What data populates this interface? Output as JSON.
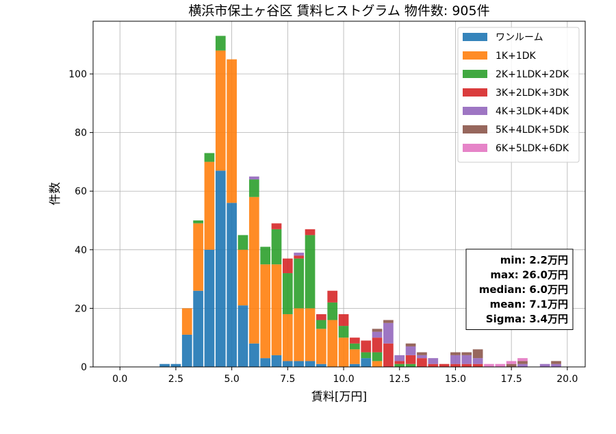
{
  "chart_data": {
    "type": "bar",
    "stacked": true,
    "title": "横浜市保土ヶ谷区 賃料ヒストグラム 物件数: 905件",
    "xlabel": "賃料[万円]",
    "ylabel": "件数",
    "xlim": [
      -1.2,
      20.8
    ],
    "ylim": [
      0,
      118
    ],
    "xticks": [
      0.0,
      2.5,
      5.0,
      7.5,
      10.0,
      12.5,
      15.0,
      17.5,
      20.0
    ],
    "xtick_labels": [
      "0.0",
      "2.5",
      "5.0",
      "7.5",
      "10.0",
      "12.5",
      "15.0",
      "17.5",
      "20.0"
    ],
    "yticks": [
      0,
      20,
      40,
      60,
      80,
      100
    ],
    "ytick_labels": [
      "0",
      "20",
      "40",
      "60",
      "80",
      "100"
    ],
    "grid": true,
    "legend_position": "top-right",
    "bin_width": 0.5,
    "x": [
      2.0,
      2.5,
      3.0,
      3.5,
      4.0,
      4.5,
      5.0,
      5.5,
      6.0,
      6.5,
      7.0,
      7.5,
      8.0,
      8.5,
      9.0,
      9.5,
      10.0,
      10.5,
      11.0,
      11.5,
      12.0,
      12.5,
      13.0,
      13.5,
      14.0,
      14.5,
      15.0,
      15.5,
      16.0,
      16.5,
      17.0,
      17.5,
      18.0,
      18.5,
      19.0,
      19.5
    ],
    "series": [
      {
        "name": "ワンルーム",
        "color": "#1f77b4",
        "values": [
          1,
          1,
          11,
          26,
          40,
          67,
          56,
          21,
          8,
          3,
          4,
          2,
          2,
          2,
          1,
          0,
          0,
          1,
          3,
          0,
          0,
          0,
          0,
          0,
          0,
          0,
          0,
          0,
          0,
          0,
          0,
          0,
          0,
          0,
          0,
          0
        ]
      },
      {
        "name": "1K+1DK",
        "color": "#ff7f0e",
        "values": [
          0,
          0,
          9,
          23,
          30,
          41,
          49,
          19,
          50,
          32,
          31,
          16,
          18,
          18,
          12,
          16,
          10,
          5,
          0,
          2,
          0,
          0,
          0,
          0,
          0,
          0,
          0,
          0,
          0,
          0,
          0,
          0,
          0,
          0,
          0,
          0
        ]
      },
      {
        "name": "2K+1LDK+2DK",
        "color": "#2ca02c",
        "values": [
          0,
          0,
          0,
          1,
          3,
          5,
          0,
          5,
          6,
          6,
          12,
          14,
          17,
          25,
          3,
          6,
          4,
          2,
          2,
          3,
          0,
          1,
          1,
          0,
          0,
          0,
          0,
          0,
          0,
          0,
          0,
          0,
          0,
          0,
          0,
          0
        ]
      },
      {
        "name": "3K+2LDK+3DK",
        "color": "#d62728",
        "values": [
          0,
          0,
          0,
          0,
          0,
          0,
          0,
          0,
          0,
          0,
          2,
          5,
          1,
          2,
          2,
          4,
          4,
          2,
          4,
          5,
          8,
          1,
          3,
          3,
          1,
          1,
          1,
          1,
          1,
          0,
          0,
          0,
          0,
          0,
          0,
          0
        ]
      },
      {
        "name": "4K+3LDK+4DK",
        "color": "#9467bd",
        "values": [
          0,
          0,
          0,
          0,
          0,
          0,
          0,
          0,
          1,
          0,
          0,
          0,
          1,
          0,
          0,
          0,
          0,
          0,
          0,
          2,
          7,
          2,
          3,
          1,
          2,
          0,
          3,
          3,
          2,
          0,
          0,
          0,
          1,
          0,
          1,
          1
        ]
      },
      {
        "name": "5K+4LDK+5DK",
        "color": "#8c564b",
        "values": [
          0,
          0,
          0,
          0,
          0,
          0,
          0,
          0,
          0,
          0,
          0,
          0,
          0,
          0,
          0,
          0,
          0,
          0,
          0,
          1,
          1,
          0,
          1,
          1,
          0,
          0,
          1,
          1,
          3,
          0,
          0,
          1,
          1,
          0,
          0,
          1
        ]
      },
      {
        "name": "6K+5LDK+6DK",
        "color": "#e377c2",
        "values": [
          0,
          0,
          0,
          0,
          0,
          0,
          0,
          0,
          0,
          0,
          0,
          0,
          0,
          0,
          0,
          0,
          0,
          0,
          0,
          0,
          0,
          0,
          0,
          0,
          0,
          0,
          0,
          0,
          0,
          1,
          1,
          1,
          1,
          0,
          0,
          0
        ]
      }
    ],
    "stats": [
      "min: 2.2万円",
      "max: 26.0万円",
      "median: 6.0万円",
      "mean: 7.1万円",
      "Sigma: 3.4万円"
    ]
  }
}
